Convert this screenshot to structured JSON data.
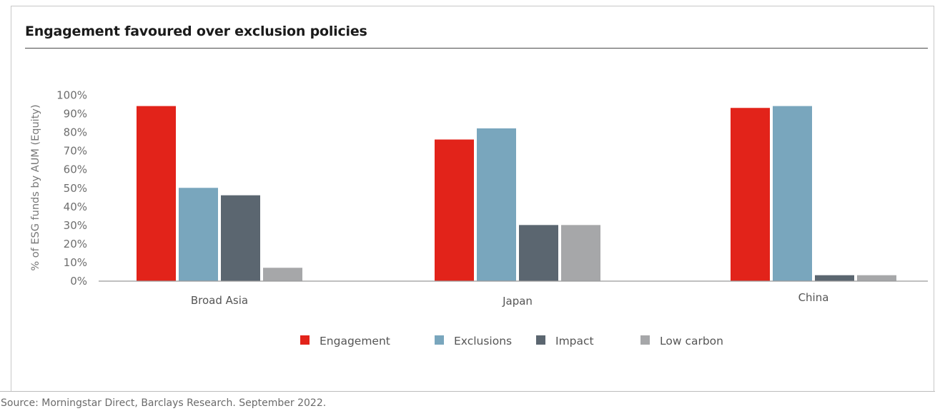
{
  "title": "Engagement favoured over exclusion policies",
  "source": "Source: Morningstar Direct, Barclays Research. September 2022.",
  "chart_data": {
    "type": "bar",
    "categories": [
      "Broad Asia",
      "Japan",
      "China"
    ],
    "series": [
      {
        "name": "Engagement",
        "color": "#e2231a",
        "values": [
          94,
          76,
          93
        ]
      },
      {
        "name": "Exclusions",
        "color": "#79a6bd",
        "values": [
          50,
          82,
          94
        ]
      },
      {
        "name": "Impact",
        "color": "#5b6670",
        "values": [
          46,
          30,
          3
        ]
      },
      {
        "name": "Low carbon",
        "color": "#a6a7a9",
        "values": [
          7,
          30,
          3
        ]
      }
    ],
    "ylabel": "% of ESG funds by AUM (Equity)",
    "xlabel": "",
    "ylim": [
      0,
      100
    ],
    "yticks": [
      "0%",
      "10%",
      "20%",
      "30%",
      "40%",
      "50%",
      "60%",
      "70%",
      "80%",
      "90%",
      "100%"
    ],
    "grid": false,
    "legend": "bottom-center"
  }
}
